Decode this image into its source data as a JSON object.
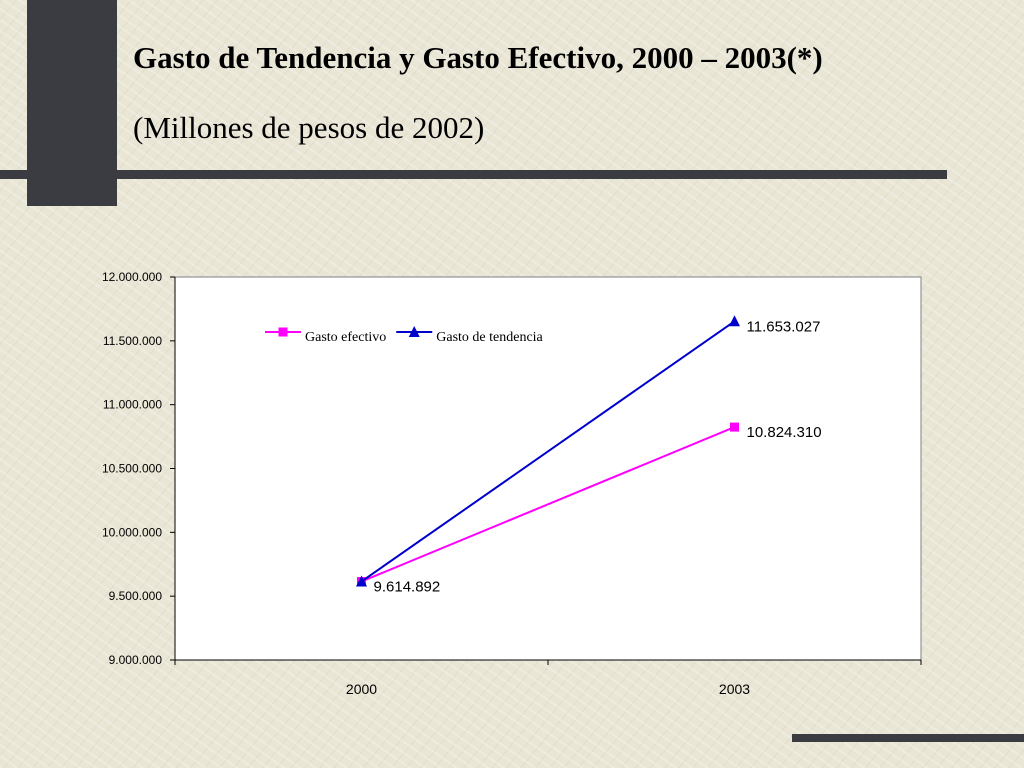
{
  "slide": {
    "title": "Gasto de Tendencia y Gasto Efectivo, 2000 – 2003(*)",
    "subtitle": "(Millones de pesos de 2002)"
  },
  "chart_data": {
    "type": "line",
    "title": "",
    "xlabel": "",
    "ylabel": "",
    "categories": [
      "2000",
      "2003"
    ],
    "ylim": [
      9000000,
      12000000
    ],
    "yticks": [
      9000000,
      9500000,
      10000000,
      10500000,
      11000000,
      11500000,
      12000000
    ],
    "ytick_labels": [
      "9.000.000",
      "9.500.000",
      "10.000.000",
      "10.500.000",
      "11.000.000",
      "11.500.000",
      "12.000.000"
    ],
    "grid": false,
    "legend_position": "top-left",
    "series": [
      {
        "name": "Gasto efectivo",
        "values": [
          9614892,
          10824310
        ],
        "color": "#ff00ff",
        "marker": "square",
        "data_labels": [
          "",
          "10.824.310"
        ]
      },
      {
        "name": "Gasto de tendencia",
        "values": [
          9614892,
          11653027
        ],
        "color": "#0000cc",
        "marker": "triangle",
        "data_labels": [
          "9.614.892",
          "11.653.027"
        ]
      }
    ]
  },
  "colors": {
    "background": "#e9e6d6",
    "accent_dark": "#3b3b42",
    "plot_background": "#ffffff"
  }
}
